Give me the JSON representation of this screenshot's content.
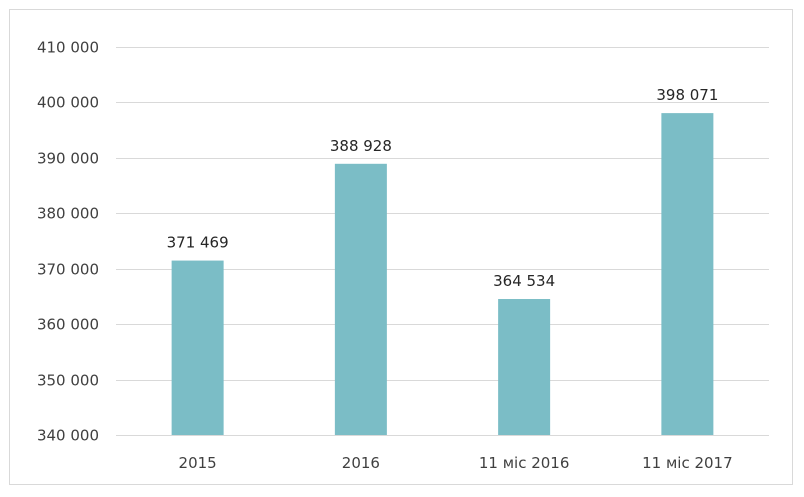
{
  "chart_data": {
    "type": "bar",
    "categories": [
      "2015",
      "2016",
      "11 міс 2016",
      "11 міс 2017"
    ],
    "values": [
      371469,
      388928,
      364534,
      398071
    ],
    "data_labels": [
      "371 469",
      "388 928",
      "364 534",
      "398 071"
    ],
    "ylim": [
      340000,
      410000
    ],
    "yticks": [
      340000,
      350000,
      360000,
      370000,
      380000,
      390000,
      400000,
      410000
    ],
    "ytick_labels": [
      "340 000",
      "350 000",
      "360 000",
      "370 000",
      "380 000",
      "390 000",
      "400 000",
      "410 000"
    ],
    "grid": true,
    "legend": "none",
    "bar_color": "#7bbdc6",
    "grid_color": "#d9d9d9"
  }
}
